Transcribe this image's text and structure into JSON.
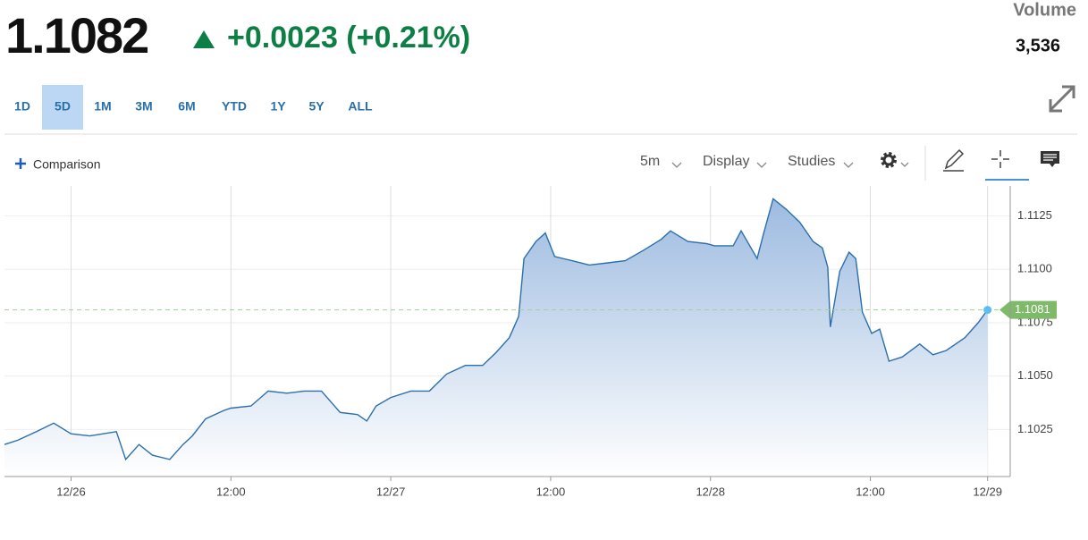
{
  "quote": {
    "price": "1.1082",
    "change": "+0.0023 (+0.21%)"
  },
  "volume": {
    "label": "Volume",
    "value": "3,536"
  },
  "ranges": [
    "1D",
    "5D",
    "1M",
    "3M",
    "6M",
    "YTD",
    "1Y",
    "5Y",
    "ALL"
  ],
  "selected_range": 1,
  "toolbar": {
    "comparison": "Comparison",
    "interval": "5m",
    "display": "Display",
    "studies": "Studies"
  },
  "chart_data": {
    "type": "line",
    "color": "#2b6fae",
    "x": [
      -5.0,
      -4.0,
      -2.6,
      -1.3,
      0,
      1.4,
      3.4,
      4.1,
      5.1,
      6.1,
      7.4,
      8.4,
      9.1,
      10.1,
      11.5,
      12.0,
      13.5,
      14.8,
      16.2,
      17.5,
      18.8,
      20.2,
      21.5,
      22.2,
      22.9,
      24.0,
      25.5,
      26.9,
      28.2,
      29.6,
      30.9,
      31.9,
      32.9,
      33.6,
      34.0,
      34.9,
      35.6,
      36.3,
      37.6,
      38.9,
      40.3,
      41.6,
      43.0,
      44.3,
      45.0,
      46.3,
      47.7,
      48.3,
      49.7,
      50.3,
      51.5,
      52.0,
      52.7,
      53.7,
      54.7,
      55.7,
      56.4,
      56.8,
      57.0,
      57.7,
      58.4,
      58.9,
      59.4,
      60.1,
      60.7,
      61.4,
      62.4,
      63.7,
      64.7,
      65.7,
      67.1,
      68.1,
      68.8
    ],
    "values": [
      1.1018,
      1.102,
      1.1024,
      1.1028,
      1.1023,
      1.1022,
      1.1024,
      1.1011,
      1.1018,
      1.1013,
      1.1011,
      1.1018,
      1.1022,
      1.103,
      1.1034,
      1.1035,
      1.1036,
      1.1043,
      1.1042,
      1.1043,
      1.1043,
      1.1033,
      1.1032,
      1.1029,
      1.1036,
      1.104,
      1.1043,
      1.1043,
      1.1051,
      1.1055,
      1.1055,
      1.1061,
      1.1068,
      1.1078,
      1.1105,
      1.1113,
      1.1117,
      1.1106,
      1.1104,
      1.1102,
      1.1103,
      1.1104,
      1.1109,
      1.1114,
      1.1118,
      1.1113,
      1.1112,
      1.1111,
      1.1111,
      1.1118,
      1.1105,
      1.1117,
      1.1133,
      1.1128,
      1.1122,
      1.1113,
      1.111,
      1.1101,
      1.1073,
      1.1099,
      1.1108,
      1.1105,
      1.108,
      1.107,
      1.1072,
      1.1057,
      1.1059,
      1.1065,
      1.106,
      1.1062,
      1.1068,
      1.1075,
      1.1081
    ],
    "xlim": [
      -5,
      70.5
    ],
    "xticks": [
      {
        "value": 0,
        "label": "12/26"
      },
      {
        "value": 12,
        "label": "12:00"
      },
      {
        "value": 24,
        "label": "12/27"
      },
      {
        "value": 36,
        "label": "12:00"
      },
      {
        "value": 48,
        "label": "12/28"
      },
      {
        "value": 60,
        "label": "12:00"
      },
      {
        "value": 68.8,
        "label": "12/29"
      }
    ],
    "ylim": [
      1.1003,
      1.1139
    ],
    "yticks": [
      1.1025,
      {
        "value": 1.105,
        "label": "1.1050"
      },
      1.1075,
      {
        "value": 1.11,
        "label": "1.1100"
      },
      1.1125
    ],
    "grid": true
  }
}
